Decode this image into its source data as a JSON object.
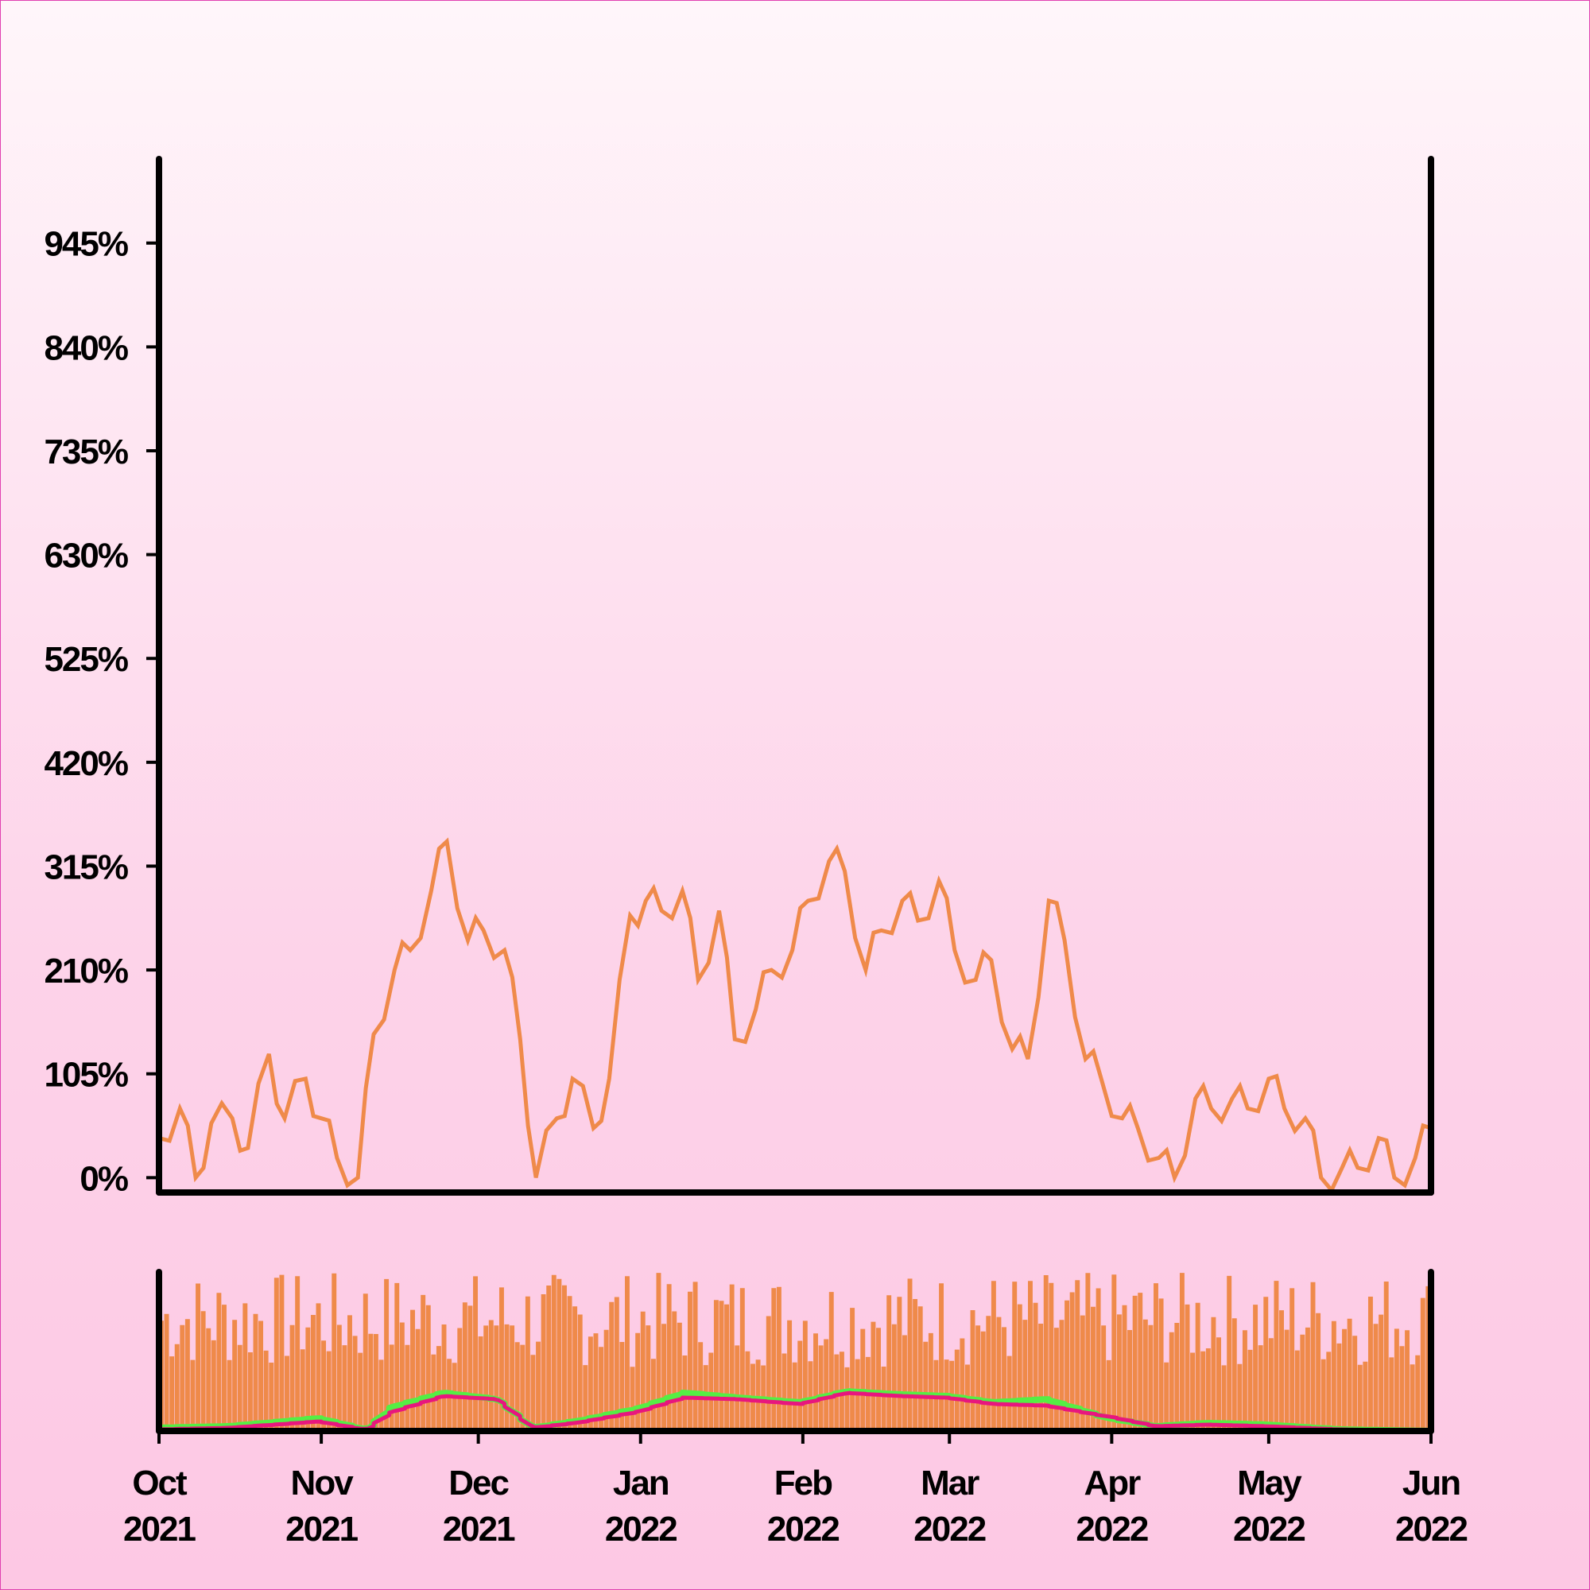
{
  "chart_data": [
    {
      "type": "line",
      "panel": "main",
      "y_ticks": [
        "0%",
        "105%",
        "210%",
        "315%",
        "420%",
        "525%",
        "630%",
        "735%",
        "840%",
        "945%"
      ],
      "y_tick_values": [
        0,
        105,
        210,
        315,
        420,
        525,
        630,
        735,
        840,
        945
      ],
      "ylim": [
        -15,
        1030
      ],
      "xlim": [
        "2021-10-01",
        "2022-06-01"
      ],
      "series": [
        {
          "color": "#ef8a4a",
          "x": [
            "2021-10-01",
            "2021-10-05",
            "2021-10-08",
            "2021-10-11",
            "2021-10-15",
            "2021-10-18",
            "2021-10-22",
            "2021-10-25",
            "2021-10-29",
            "2021-11-01",
            "2021-11-04",
            "2021-11-08",
            "2021-11-11",
            "2021-11-15",
            "2021-11-18",
            "2021-11-22",
            "2021-11-25",
            "2021-11-29",
            "2021-12-02",
            "2021-12-06",
            "2021-12-09",
            "2021-12-12",
            "2021-12-16",
            "2021-12-19",
            "2021-12-23",
            "2021-12-26",
            "2021-12-30",
            "2022-01-02",
            "2022-01-05",
            "2022-01-09",
            "2022-01-12",
            "2022-01-16",
            "2022-01-19",
            "2022-01-23",
            "2022-01-26",
            "2022-01-30",
            "2022-02-02",
            "2022-02-06",
            "2022-02-09",
            "2022-02-13",
            "2022-02-16",
            "2022-02-20",
            "2022-02-23",
            "2022-02-27",
            "2022-03-02",
            "2022-03-06",
            "2022-03-09",
            "2022-03-13",
            "2022-03-16",
            "2022-03-20",
            "2022-03-23",
            "2022-03-27",
            "2022-03-30",
            "2022-04-03",
            "2022-04-06",
            "2022-04-10",
            "2022-04-13",
            "2022-04-17",
            "2022-04-20",
            "2022-04-24",
            "2022-04-27",
            "2022-05-01",
            "2022-05-04",
            "2022-05-08",
            "2022-05-11",
            "2022-05-15",
            "2022-05-18",
            "2022-05-22",
            "2022-05-25",
            "2022-05-29",
            "2022-06-01"
          ],
          "values": [
            40,
            70,
            0,
            55,
            60,
            30,
            125,
            60,
            100,
            60,
            20,
            0,
            145,
            210,
            230,
            290,
            340,
            240,
            250,
            230,
            140,
            0,
            60,
            100,
            50,
            100,
            265,
            280,
            270,
            290,
            200,
            270,
            140,
            170,
            210,
            230,
            280,
            320,
            310,
            210,
            250,
            280,
            260,
            300,
            230,
            200,
            220,
            130,
            120,
            280,
            240,
            120,
            100,
            60,
            50,
            20,
            0,
            80,
            70,
            80,
            70,
            100,
            70,
            60,
            0,
            10,
            10,
            40,
            0,
            20,
            50
          ]
        }
      ]
    },
    {
      "type": "bar",
      "panel": "overview",
      "x_ticks": [
        "Oct\n2021",
        "Nov\n2021",
        "Dec\n2021",
        "Jan\n2022",
        "Feb\n2022",
        "Mar\n2022",
        "Apr\n2022",
        "May\n2022",
        "Jun\n2022"
      ],
      "x_tick_dates": [
        "2021-10-01",
        "2021-11-01",
        "2021-12-01",
        "2022-01-01",
        "2022-02-01",
        "2022-03-01",
        "2022-04-01",
        "2022-05-01",
        "2022-06-01"
      ],
      "bar_color": "#ef8a4a",
      "bar_level_range": [
        0.4,
        1.0
      ],
      "series": [
        {
          "color": "#55ee44",
          "x": [
            "2021-10-01",
            "2021-10-15",
            "2021-11-01",
            "2021-11-10",
            "2021-11-15",
            "2021-11-25",
            "2021-12-05",
            "2021-12-12",
            "2021-12-20",
            "2022-01-01",
            "2022-01-10",
            "2022-01-20",
            "2022-02-01",
            "2022-02-10",
            "2022-02-20",
            "2022-03-01",
            "2022-03-10",
            "2022-03-20",
            "2022-04-01",
            "2022-04-10",
            "2022-04-20",
            "2022-05-01",
            "2022-05-15",
            "2022-06-01"
          ],
          "values": [
            0.02,
            0.03,
            0.08,
            0.01,
            0.15,
            0.24,
            0.2,
            0.02,
            0.06,
            0.14,
            0.24,
            0.21,
            0.18,
            0.25,
            0.23,
            0.22,
            0.18,
            0.2,
            0.08,
            0.03,
            0.05,
            0.04,
            0.01,
            0.0
          ]
        },
        {
          "color": "#e8167e",
          "x": [
            "2021-10-01",
            "2021-10-15",
            "2021-11-01",
            "2021-11-10",
            "2021-11-15",
            "2021-11-25",
            "2021-12-05",
            "2021-12-12",
            "2021-12-20",
            "2022-01-01",
            "2022-01-10",
            "2022-01-20",
            "2022-02-01",
            "2022-02-10",
            "2022-02-20",
            "2022-03-01",
            "2022-03-10",
            "2022-03-20",
            "2022-04-01",
            "2022-04-10",
            "2022-04-20",
            "2022-05-01",
            "2022-05-15",
            "2022-06-01"
          ],
          "values": [
            0.01,
            0.02,
            0.06,
            0.01,
            0.12,
            0.22,
            0.2,
            0.02,
            0.05,
            0.12,
            0.21,
            0.2,
            0.17,
            0.24,
            0.22,
            0.21,
            0.17,
            0.16,
            0.09,
            0.03,
            0.04,
            0.03,
            0.01,
            0.0
          ]
        }
      ]
    }
  ]
}
